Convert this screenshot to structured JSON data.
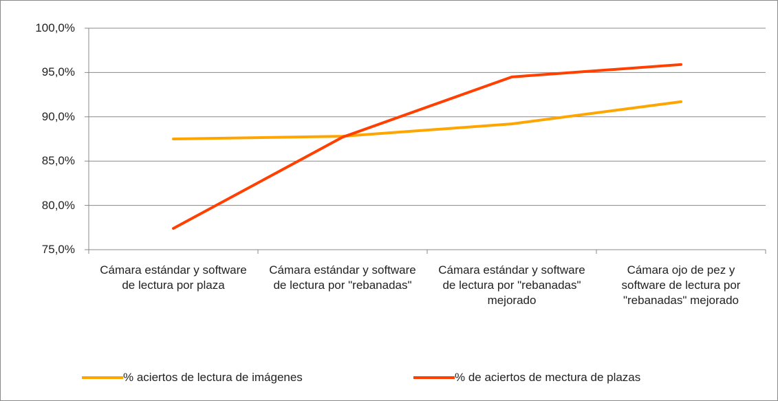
{
  "chart_data": {
    "type": "line",
    "categories": [
      "Cámara estándar y software de lectura por plaza",
      "Cámara estándar y software de lectura por \"rebanadas\"",
      "Cámara estándar y software de lectura por \"rebanadas\" mejorado",
      "Cámara ojo de pez y software de lectura por \"rebanadas\" mejorado"
    ],
    "series": [
      {
        "name": "% aciertos de lectura de imágenes",
        "color": "#ffa500",
        "values": [
          87.5,
          87.8,
          89.2,
          91.7
        ]
      },
      {
        "name": "% de aciertos de mectura de plazas",
        "color": "#ff4000",
        "values": [
          77.4,
          87.7,
          94.5,
          95.9
        ]
      }
    ],
    "ylim": [
      75,
      100
    ],
    "yticks": [
      {
        "value": 75,
        "label": "75,0%"
      },
      {
        "value": 80,
        "label": "80,0%"
      },
      {
        "value": 85,
        "label": "85,0%"
      },
      {
        "value": 90,
        "label": "90,0%"
      },
      {
        "value": 95,
        "label": "95,0%"
      },
      {
        "value": 100,
        "label": "100,0%"
      }
    ],
    "grid": true,
    "legend": "bottom"
  }
}
